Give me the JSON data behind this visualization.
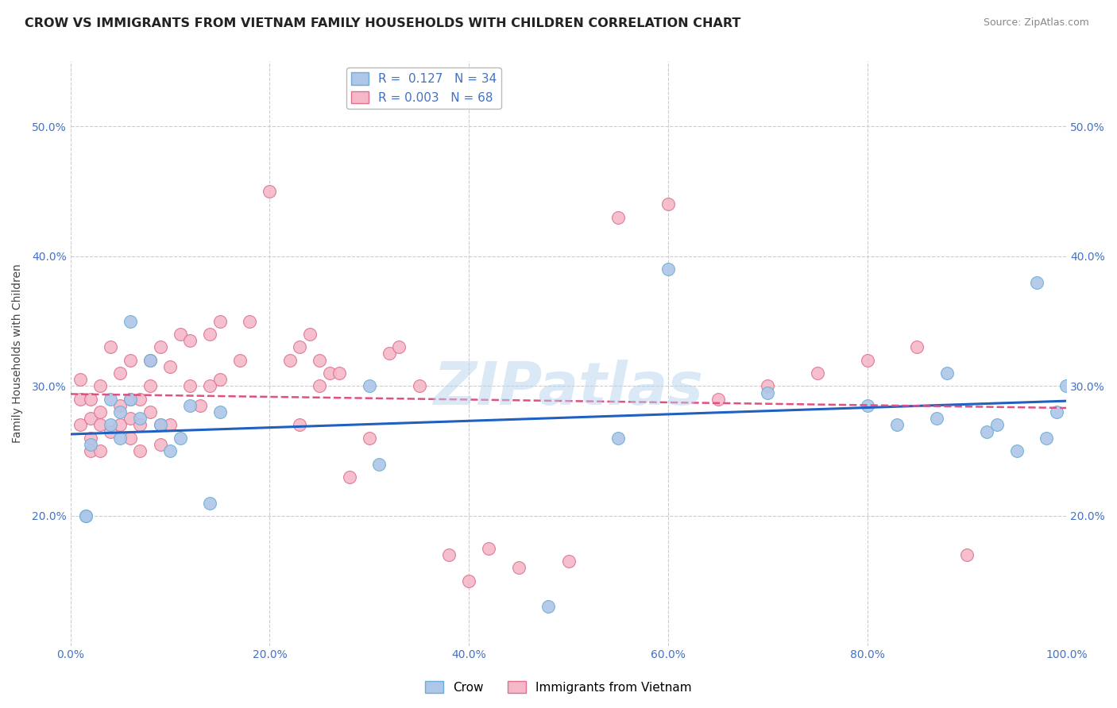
{
  "title": "CROW VS IMMIGRANTS FROM VIETNAM FAMILY HOUSEHOLDS WITH CHILDREN CORRELATION CHART",
  "source": "Source: ZipAtlas.com",
  "ylabel": "Family Households with Children",
  "xlim": [
    0,
    100
  ],
  "ylim": [
    10,
    55
  ],
  "yticks": [
    20,
    30,
    40,
    50
  ],
  "xticks": [
    0,
    20,
    40,
    60,
    80,
    100
  ],
  "background_color": "#ffffff",
  "grid_color": "#cccccc",
  "crow_color": "#aec6e8",
  "crow_edge_color": "#6baed6",
  "vietnam_color": "#f4b8c8",
  "vietnam_edge_color": "#e07090",
  "crow_R": 0.127,
  "crow_N": 34,
  "vietnam_R": 0.003,
  "vietnam_N": 68,
  "crow_line_color": "#2060c0",
  "vietnam_line_color": "#e05080",
  "watermark": "ZIPatlas",
  "crow_x": [
    1.5,
    1.5,
    2,
    4,
    4,
    5,
    5,
    6,
    6,
    7,
    8,
    9,
    10,
    11,
    12,
    14,
    15,
    30,
    31,
    55,
    60,
    70,
    80,
    83,
    87,
    88,
    92,
    93,
    95,
    97,
    98,
    99,
    48,
    100
  ],
  "crow_y": [
    20,
    20,
    25.5,
    27,
    29,
    28,
    26,
    35,
    29,
    27.5,
    32,
    27,
    25,
    26,
    28.5,
    21,
    28,
    30,
    24,
    26,
    39,
    29.5,
    28.5,
    27,
    27.5,
    31,
    26.5,
    27,
    25,
    38,
    26,
    28,
    13,
    30
  ],
  "vietnam_x": [
    1,
    1,
    1,
    2,
    2,
    2,
    2,
    3,
    3,
    3,
    3,
    4,
    4,
    5,
    5,
    5,
    6,
    6,
    6,
    6,
    7,
    7,
    7,
    8,
    8,
    8,
    9,
    9,
    9,
    10,
    10,
    11,
    12,
    12,
    13,
    14,
    14,
    15,
    15,
    17,
    18,
    20,
    22,
    23,
    23,
    24,
    25,
    25,
    26,
    27,
    28,
    30,
    32,
    33,
    35,
    38,
    40,
    42,
    45,
    50,
    55,
    60,
    65,
    70,
    75,
    80,
    85,
    90
  ],
  "vietnam_y": [
    27,
    29,
    30.5,
    25,
    26,
    27.5,
    29,
    25,
    27,
    28,
    30,
    26.5,
    33,
    27,
    28.5,
    31,
    26,
    27.5,
    29,
    32,
    25,
    27,
    29,
    28,
    30,
    32,
    25.5,
    27,
    33,
    27,
    31.5,
    34,
    30,
    33.5,
    28.5,
    30,
    34,
    30.5,
    35,
    32,
    35,
    45,
    32,
    27,
    33,
    34,
    30,
    32,
    31,
    31,
    23,
    26,
    32.5,
    33,
    30,
    17,
    15,
    17.5,
    16,
    16.5,
    43,
    44,
    29,
    30,
    31,
    32,
    33,
    17
  ]
}
